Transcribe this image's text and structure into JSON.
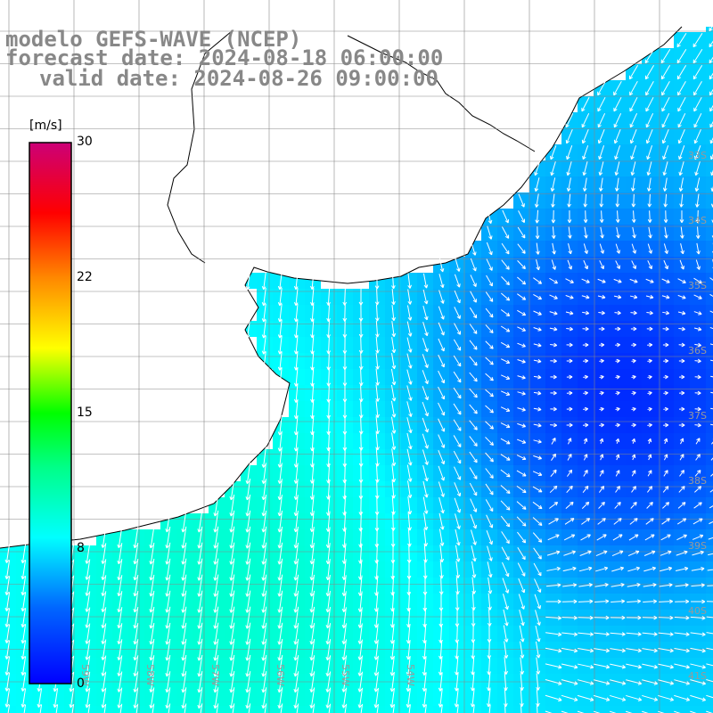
{
  "title": {
    "line1": "modelo GEFS-WAVE (NCEP)",
    "line2": "forecast date: 2024-08-18 06:00:00",
    "line3": "valid date: 2024-08-26 09:00:00"
  },
  "colorbar": {
    "unit": "[m/s]",
    "ticks": [
      "30",
      "22",
      "15",
      "8",
      "0"
    ],
    "min": 0,
    "max": 30
  },
  "map": {
    "lon_labels": [
      "59W",
      "58W",
      "57W",
      "56W",
      "55W",
      "54W"
    ],
    "lat_labels": [
      "33S",
      "34S",
      "35S",
      "36S",
      "37S",
      "38S",
      "39S",
      "40S",
      "41S"
    ],
    "colors": {
      "land": "#ffffff",
      "coast": "#000000",
      "grid": "#888888",
      "arrow": "#ffffff"
    }
  }
}
